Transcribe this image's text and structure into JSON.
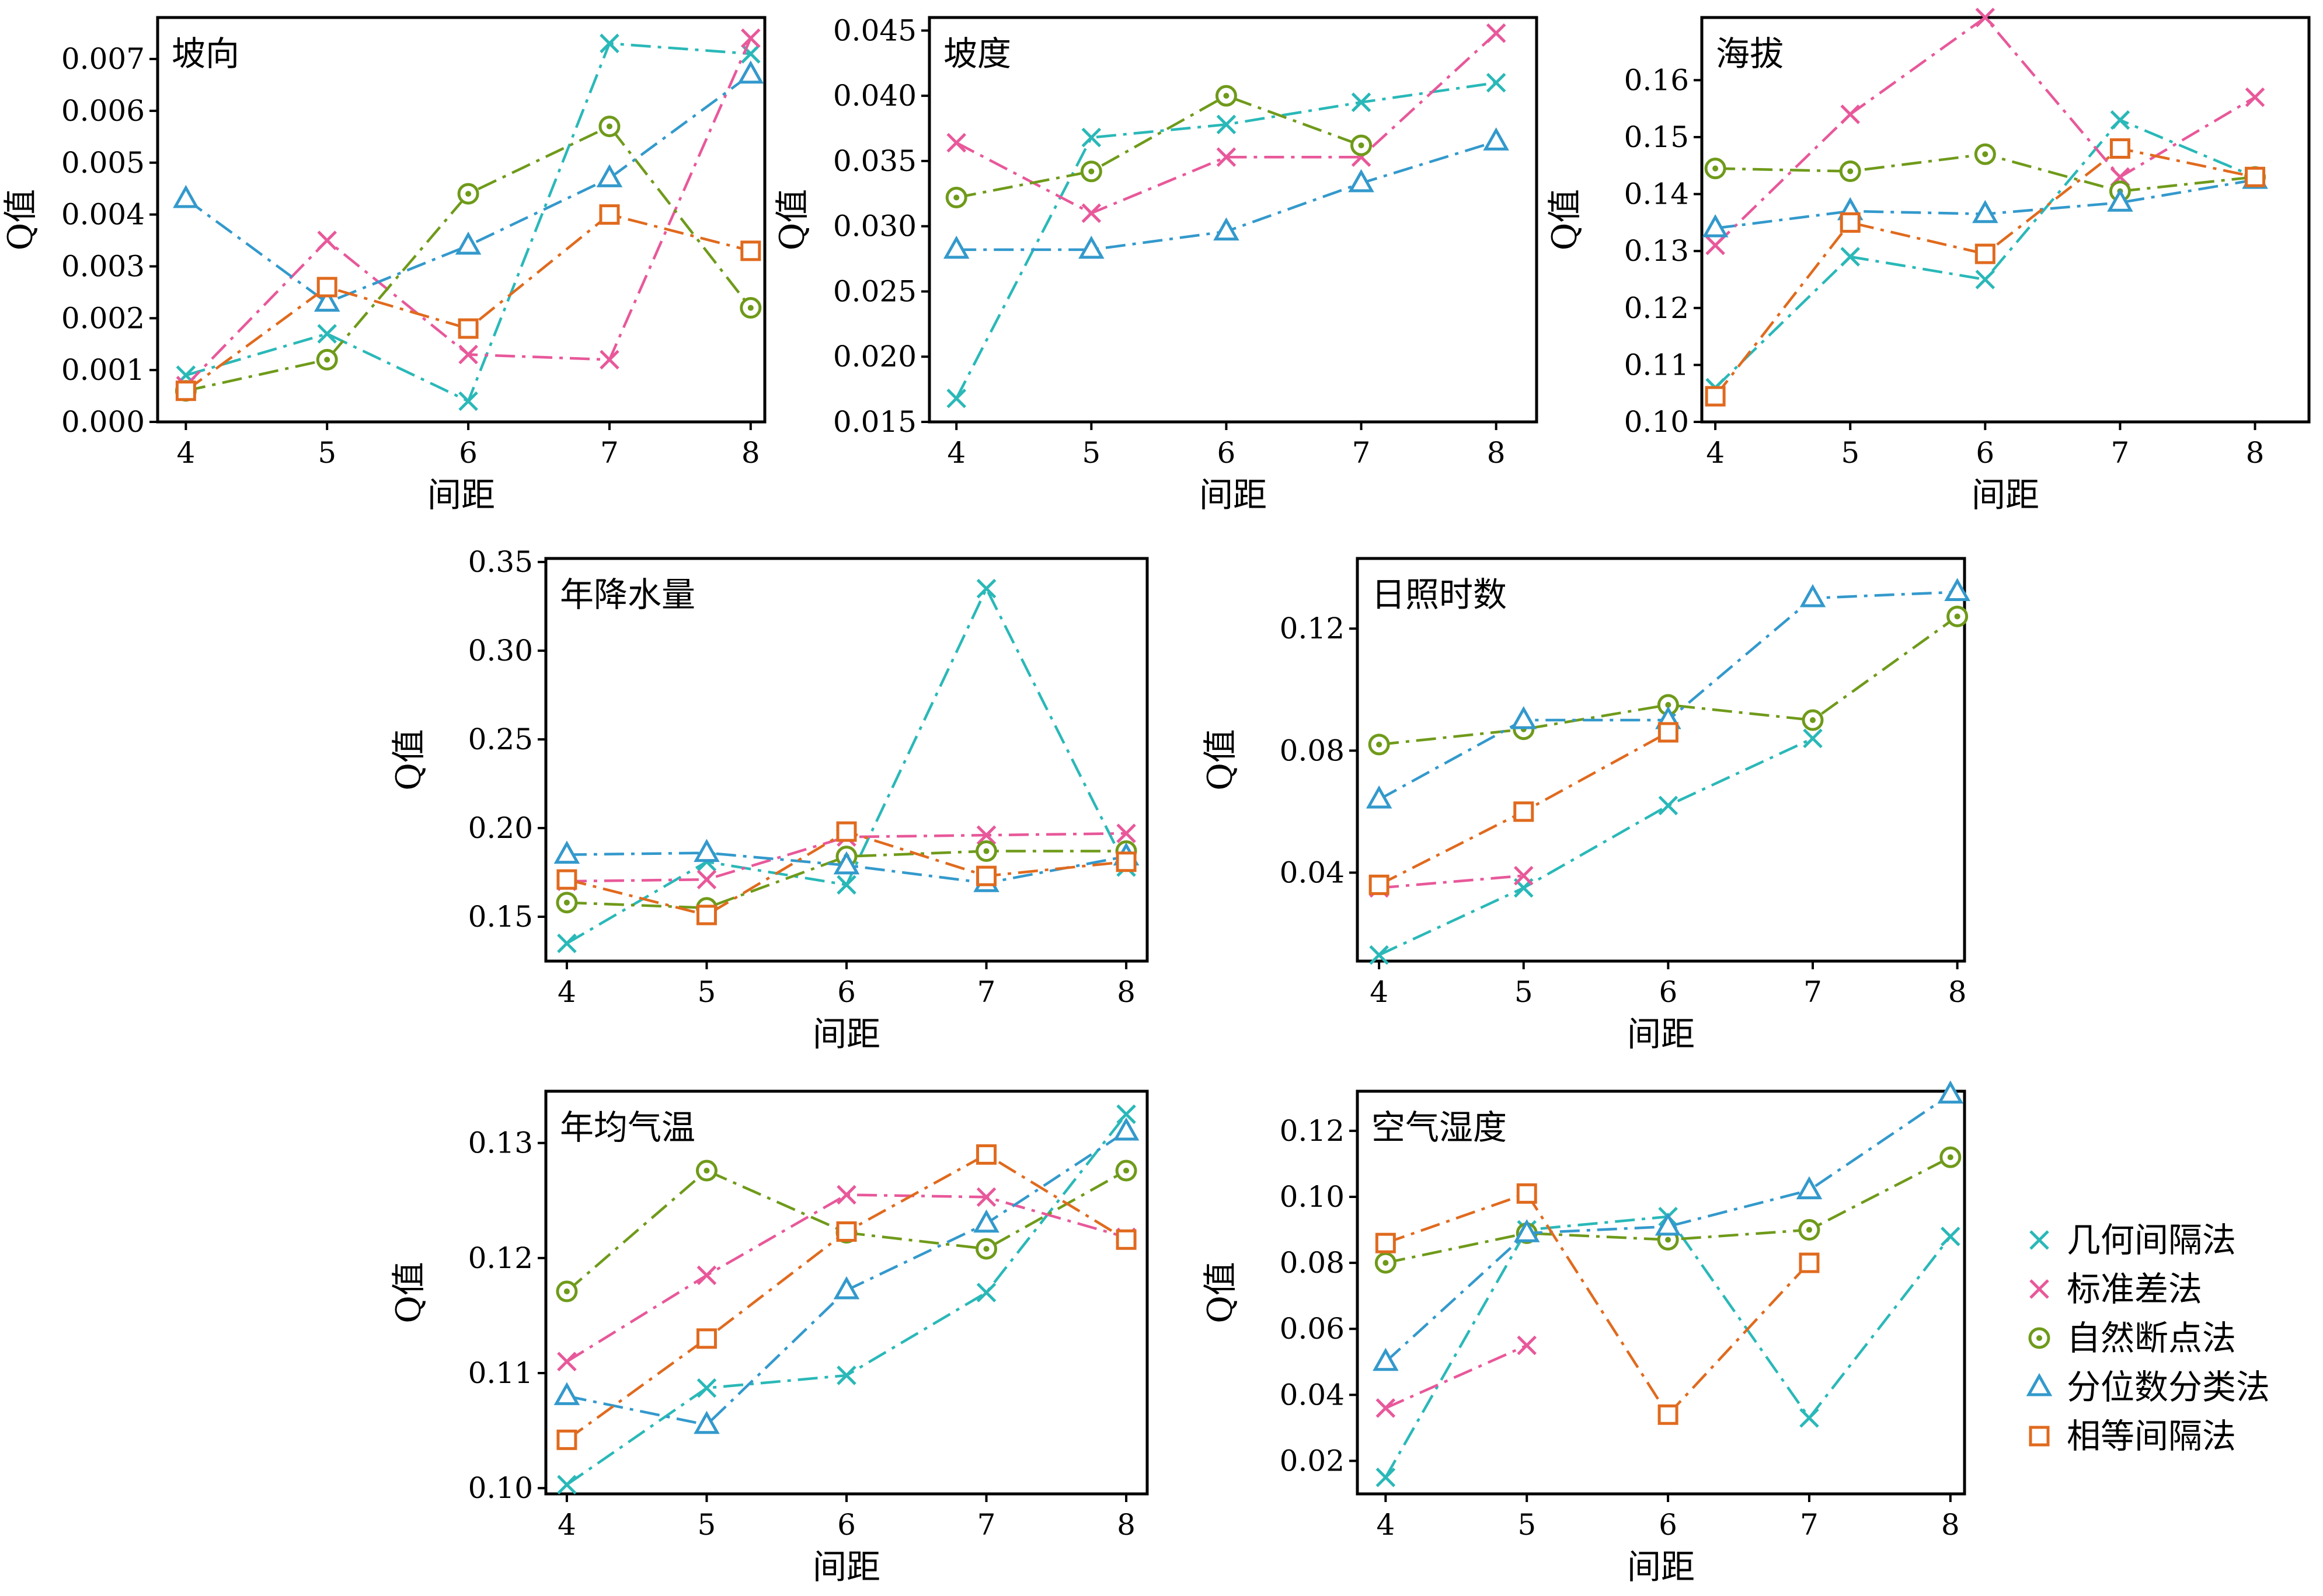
{
  "figure_title": "",
  "legend": {
    "items": [
      {
        "key": "geo",
        "label": "几何间隔法"
      },
      {
        "key": "std",
        "label": "标准差法"
      },
      {
        "key": "nat",
        "label": "自然断点法"
      },
      {
        "key": "qua",
        "label": "分位数分类法"
      },
      {
        "key": "equ",
        "label": "相等间隔法"
      }
    ]
  },
  "colors": {
    "geo": "#2ab8b8",
    "std": "#e8589a",
    "nat": "#6f9a1a",
    "qua": "#3399cc",
    "equ": "#e06a1e"
  },
  "markers": {
    "geo": "x-marker",
    "std": "x-marker",
    "nat": "circle-marker",
    "qua": "triangle-marker",
    "equ": "square-marker"
  },
  "chart_data": [
    {
      "type": "line",
      "panel_title": "坡向",
      "xlabel": "间距",
      "ylabel": "Q值",
      "x": [
        4,
        5,
        6,
        7,
        8
      ],
      "xlim": [
        3.8,
        8.1
      ],
      "ylim": [
        0,
        0.0078
      ],
      "yticks": [
        0,
        0.001,
        0.002,
        0.003,
        0.004,
        0.005,
        0.006,
        0.007
      ],
      "ytick_labels": [
        "0.000",
        "0.001",
        "0.002",
        "0.003",
        "0.004",
        "0.005",
        "0.006",
        "0.007"
      ],
      "series": [
        {
          "key": "geo",
          "name": "几何间隔法",
          "values": [
            0.0009,
            0.0017,
            0.0004,
            0.0073,
            0.0071
          ]
        },
        {
          "key": "std",
          "name": "标准差法",
          "values": [
            0.0007,
            0.0035,
            0.0013,
            0.0012,
            0.0074
          ]
        },
        {
          "key": "nat",
          "name": "自然断点法",
          "values": [
            0.0006,
            0.0012,
            0.0044,
            0.0057,
            0.0022
          ]
        },
        {
          "key": "qua",
          "name": "分位数分类法",
          "values": [
            0.0043,
            0.0023,
            0.0034,
            0.0047,
            0.0067
          ]
        },
        {
          "key": "equ",
          "name": "相等间隔法",
          "values": [
            0.0006,
            0.0026,
            0.0018,
            0.004,
            0.0033
          ]
        }
      ]
    },
    {
      "type": "line",
      "panel_title": "坡度",
      "xlabel": "间距",
      "ylabel": "Q值",
      "x": [
        4,
        5,
        6,
        7,
        8
      ],
      "xlim": [
        3.8,
        8.3
      ],
      "ylim": [
        0.015,
        0.046
      ],
      "yticks": [
        0.015,
        0.02,
        0.025,
        0.03,
        0.035,
        0.04,
        0.045
      ],
      "ytick_labels": [
        "0.015",
        "0.020",
        "0.025",
        "0.030",
        "0.035",
        "0.040",
        "0.045"
      ],
      "series": [
        {
          "key": "geo",
          "name": "几何间隔法",
          "values": [
            0.0168,
            0.0368,
            0.0378,
            0.0395,
            0.041
          ]
        },
        {
          "key": "std",
          "name": "标准差法",
          "values": [
            0.0364,
            0.031,
            0.0353,
            0.0353,
            0.0448
          ]
        },
        {
          "key": "nat",
          "name": "自然断点法",
          "values": [
            0.0322,
            0.0342,
            0.04,
            0.0362,
            null
          ]
        },
        {
          "key": "qua",
          "name": "分位数分类法",
          "values": [
            0.0282,
            0.0282,
            0.0296,
            0.0333,
            0.0365
          ]
        },
        {
          "key": "equ",
          "name": "相等间隔法",
          "values": [
            null,
            null,
            null,
            null,
            null
          ]
        }
      ]
    },
    {
      "type": "line",
      "panel_title": "海拔",
      "xlabel": "间距",
      "ylabel": "Q值",
      "x": [
        4,
        5,
        6,
        7,
        8
      ],
      "xlim": [
        3.9,
        8.4
      ],
      "ylim": [
        0.1,
        0.171
      ],
      "yticks": [
        0.1,
        0.11,
        0.12,
        0.13,
        0.14,
        0.15,
        0.16
      ],
      "ytick_labels": [
        "0.10",
        "0.11",
        "0.12",
        "0.13",
        "0.14",
        "0.15",
        "0.16"
      ],
      "series": [
        {
          "key": "geo",
          "name": "几何间隔法",
          "values": [
            0.106,
            0.129,
            0.125,
            0.153,
            0.143
          ]
        },
        {
          "key": "std",
          "name": "标准差法",
          "values": [
            0.131,
            0.154,
            0.171,
            0.143,
            0.157
          ]
        },
        {
          "key": "nat",
          "name": "自然断点法",
          "values": [
            0.1445,
            0.144,
            0.147,
            0.1405,
            0.143
          ]
        },
        {
          "key": "qua",
          "name": "分位数分类法",
          "values": [
            0.134,
            0.137,
            0.1365,
            0.1385,
            0.1425
          ]
        },
        {
          "key": "equ",
          "name": "相等间隔法",
          "values": [
            0.1045,
            0.135,
            0.1295,
            0.148,
            0.143
          ]
        }
      ]
    },
    {
      "type": "line",
      "panel_title": "年降水量",
      "xlabel": "间距",
      "ylabel": "Q值",
      "x": [
        4,
        5,
        6,
        7,
        8
      ],
      "xlim": [
        3.85,
        8.15
      ],
      "ylim": [
        0.125,
        0.352
      ],
      "yticks": [
        0.15,
        0.2,
        0.25,
        0.3,
        0.35
      ],
      "ytick_labels": [
        "0.15",
        "0.20",
        "0.25",
        "0.30",
        "0.35"
      ],
      "series": [
        {
          "key": "geo",
          "name": "几何间隔法",
          "values": [
            0.135,
            0.181,
            0.168,
            0.335,
            0.178
          ]
        },
        {
          "key": "std",
          "name": "标准差法",
          "values": [
            0.17,
            0.171,
            0.195,
            0.196,
            0.197
          ]
        },
        {
          "key": "nat",
          "name": "自然断点法",
          "values": [
            0.158,
            0.155,
            0.184,
            0.187,
            0.187
          ]
        },
        {
          "key": "qua",
          "name": "分位数分类法",
          "values": [
            0.185,
            0.186,
            0.179,
            0.169,
            0.184
          ]
        },
        {
          "key": "equ",
          "name": "相等间隔法",
          "values": [
            0.171,
            0.151,
            0.198,
            0.173,
            0.181
          ]
        }
      ]
    },
    {
      "type": "line",
      "panel_title": "日照时数",
      "xlabel": "间距",
      "ylabel": "Q值",
      "x": [
        4,
        5,
        6,
        7,
        8
      ],
      "xlim": [
        3.85,
        8.05
      ],
      "ylim": [
        0.011,
        0.143
      ],
      "yticks": [
        0.04,
        0.08,
        0.12
      ],
      "ytick_labels": [
        "0.04",
        "0.08",
        "0.12"
      ],
      "series": [
        {
          "key": "geo",
          "name": "几何间隔法",
          "values": [
            0.013,
            0.035,
            0.062,
            0.084,
            null
          ]
        },
        {
          "key": "std",
          "name": "标准差法",
          "values": [
            0.035,
            0.039,
            null,
            null,
            null
          ]
        },
        {
          "key": "nat",
          "name": "自然断点法",
          "values": [
            0.082,
            0.087,
            0.095,
            0.09,
            0.124
          ]
        },
        {
          "key": "qua",
          "name": "分位数分类法",
          "values": [
            0.064,
            0.09,
            0.09,
            0.13,
            0.132
          ]
        },
        {
          "key": "equ",
          "name": "相等间隔法",
          "values": [
            0.036,
            0.06,
            0.086,
            null,
            null
          ]
        }
      ]
    },
    {
      "type": "line",
      "panel_title": "年均气温",
      "xlabel": "间距",
      "ylabel": "Q值",
      "x": [
        4,
        5,
        6,
        7,
        8
      ],
      "xlim": [
        3.85,
        8.15
      ],
      "ylim": [
        0.0995,
        0.1345
      ],
      "yticks": [
        0.1,
        0.11,
        0.12,
        0.13
      ],
      "ytick_labels": [
        "0.10",
        "0.11",
        "0.12",
        "0.13"
      ],
      "series": [
        {
          "key": "geo",
          "name": "几何间隔法",
          "values": [
            0.1003,
            0.1087,
            0.1098,
            0.117,
            0.1325
          ]
        },
        {
          "key": "std",
          "name": "标准差法",
          "values": [
            0.111,
            0.1185,
            0.1255,
            0.1253,
            0.1218
          ]
        },
        {
          "key": "nat",
          "name": "自然断点法",
          "values": [
            0.1171,
            0.1276,
            0.1222,
            0.1208,
            0.1276
          ]
        },
        {
          "key": "qua",
          "name": "分位数分类法",
          "values": [
            0.108,
            0.1055,
            0.1172,
            0.123,
            0.131
          ]
        },
        {
          "key": "equ",
          "name": "相等间隔法",
          "values": [
            0.1042,
            0.113,
            0.1223,
            0.129,
            0.1216
          ]
        }
      ]
    },
    {
      "type": "line",
      "panel_title": "空气湿度",
      "xlabel": "间距",
      "ylabel": "Q值",
      "x": [
        4,
        5,
        6,
        7,
        8
      ],
      "xlim": [
        3.8,
        8.1
      ],
      "ylim": [
        0.01,
        0.132
      ],
      "yticks": [
        0.02,
        0.04,
        0.06,
        0.08,
        0.1,
        0.12
      ],
      "ytick_labels": [
        "0.02",
        "0.04",
        "0.06",
        "0.08",
        "0.10",
        "0.12"
      ],
      "series": [
        {
          "key": "geo",
          "name": "几何间隔法",
          "values": [
            0.015,
            0.09,
            0.094,
            0.033,
            0.088
          ]
        },
        {
          "key": "std",
          "name": "标准差法",
          "values": [
            0.036,
            0.055,
            null,
            null,
            null
          ]
        },
        {
          "key": "nat",
          "name": "自然断点法",
          "values": [
            0.08,
            0.089,
            0.087,
            0.09,
            0.112
          ]
        },
        {
          "key": "qua",
          "name": "分位数分类法",
          "values": [
            0.05,
            0.089,
            0.091,
            0.102,
            0.131
          ]
        },
        {
          "key": "equ",
          "name": "相等间隔法",
          "values": [
            0.086,
            0.101,
            0.034,
            0.08,
            null
          ]
        }
      ]
    }
  ]
}
